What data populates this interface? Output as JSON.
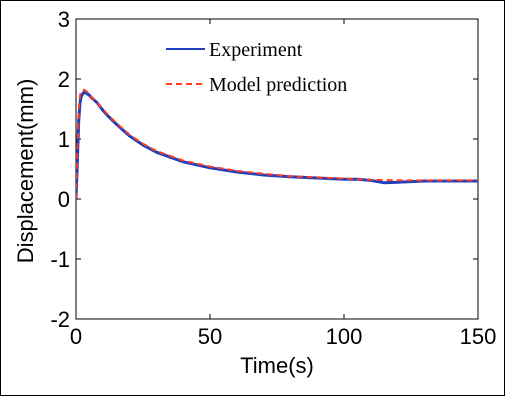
{
  "chart_data": {
    "type": "line",
    "title": "",
    "xlabel": "Time(s)",
    "ylabel": "Displacement(mm)",
    "xlim": [
      0,
      150
    ],
    "ylim": [
      -2,
      3
    ],
    "xticks": [
      "0",
      "50",
      "100",
      "150"
    ],
    "yticks": [
      "-2",
      "-1",
      "0",
      "1",
      "2",
      "3"
    ],
    "xtick_values": [
      0,
      50,
      100,
      150
    ],
    "ytick_values": [
      -2,
      -1,
      0,
      1,
      2,
      3
    ],
    "grid": false,
    "legend_position": "top-center",
    "series": [
      {
        "name": "Experiment",
        "color": "#1f3fbf",
        "style": "solid",
        "x": [
          0,
          0.5,
          1,
          1.5,
          2,
          3,
          4,
          5,
          6,
          8,
          10,
          12,
          15,
          20,
          25,
          30,
          40,
          50,
          60,
          70,
          80,
          90,
          100,
          105,
          110,
          115,
          120,
          130,
          140,
          150
        ],
        "y": [
          0.0,
          0.6,
          1.3,
          1.6,
          1.72,
          1.78,
          1.76,
          1.73,
          1.68,
          1.6,
          1.48,
          1.38,
          1.25,
          1.05,
          0.9,
          0.78,
          0.62,
          0.52,
          0.45,
          0.4,
          0.37,
          0.35,
          0.33,
          0.33,
          0.31,
          0.27,
          0.28,
          0.3,
          0.3,
          0.3
        ]
      },
      {
        "name": "Model prediction",
        "color": "#ff3b1f",
        "style": "dashed",
        "x": [
          0,
          0.5,
          1,
          1.5,
          2,
          3,
          4,
          5,
          6,
          8,
          10,
          12,
          15,
          20,
          25,
          30,
          40,
          50,
          60,
          70,
          80,
          90,
          100,
          110,
          120,
          130,
          140,
          150
        ],
        "y": [
          0.0,
          0.8,
          1.45,
          1.72,
          1.8,
          1.82,
          1.79,
          1.74,
          1.69,
          1.6,
          1.5,
          1.4,
          1.27,
          1.07,
          0.92,
          0.8,
          0.64,
          0.54,
          0.47,
          0.42,
          0.38,
          0.36,
          0.34,
          0.32,
          0.31,
          0.31,
          0.31,
          0.31
        ]
      }
    ]
  }
}
